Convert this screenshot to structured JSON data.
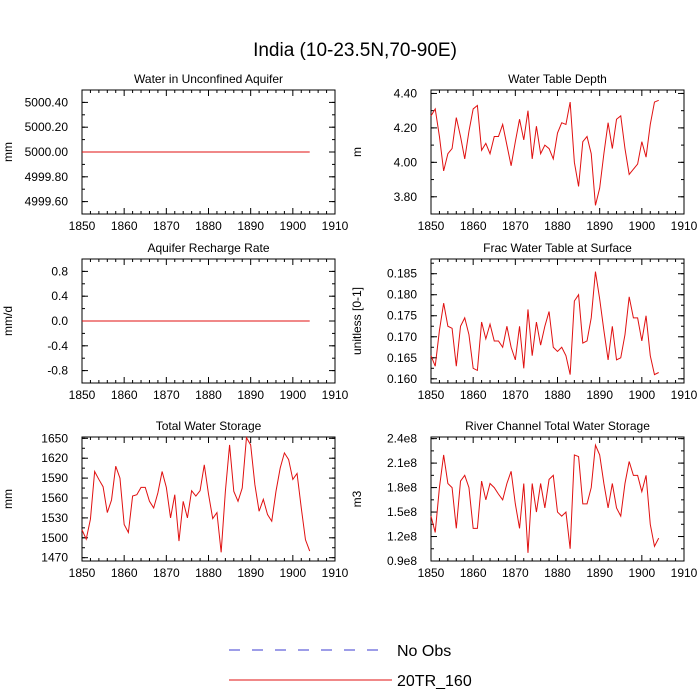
{
  "figure": {
    "title": "India (10-23.5N,70-90E)",
    "legend": [
      {
        "label": "No Obs",
        "color": "#3b3bd0",
        "style": "dashed"
      },
      {
        "label": "20TR_160",
        "color": "#e01010",
        "style": "solid"
      }
    ]
  },
  "chart_data": [
    {
      "type": "line",
      "title": "Water in Unconfined Aquifer",
      "ylabel": "mm",
      "xlim": [
        1850,
        1910
      ],
      "ylim": [
        4999.5,
        5000.5
      ],
      "xticks": [
        1850,
        1860,
        1870,
        1880,
        1890,
        1900,
        1910
      ],
      "yticks": [
        4999.6,
        4999.8,
        5000.0,
        5000.2,
        5000.4
      ],
      "yticklabels": [
        "4999.60",
        "4999.80",
        "5000.00",
        "5000.20",
        "5000.40"
      ],
      "x": [
        1850,
        1851,
        1852,
        1853,
        1854,
        1855,
        1856,
        1857,
        1858,
        1859,
        1860,
        1861,
        1862,
        1863,
        1864,
        1865,
        1866,
        1867,
        1868,
        1869,
        1870,
        1871,
        1872,
        1873,
        1874,
        1875,
        1876,
        1877,
        1878,
        1879,
        1880,
        1881,
        1882,
        1883,
        1884,
        1885,
        1886,
        1887,
        1888,
        1889,
        1890,
        1891,
        1892,
        1893,
        1894,
        1895,
        1896,
        1897,
        1898,
        1899,
        1900,
        1901,
        1902,
        1903,
        1904
      ],
      "series": [
        {
          "name": "20TR_160",
          "color": "#e01010",
          "values": [
            5000,
            5000,
            5000,
            5000,
            5000,
            5000,
            5000,
            5000,
            5000,
            5000,
            5000,
            5000,
            5000,
            5000,
            5000,
            5000,
            5000,
            5000,
            5000,
            5000,
            5000,
            5000,
            5000,
            5000,
            5000,
            5000,
            5000,
            5000,
            5000,
            5000,
            5000,
            5000,
            5000,
            5000,
            5000,
            5000,
            5000,
            5000,
            5000,
            5000,
            5000,
            5000,
            5000,
            5000,
            5000,
            5000,
            5000,
            5000,
            5000,
            5000,
            5000,
            5000,
            5000,
            5000,
            5000
          ]
        }
      ]
    },
    {
      "type": "line",
      "title": "Water Table Depth",
      "ylabel": "m",
      "xlim": [
        1850,
        1910
      ],
      "ylim": [
        3.7,
        4.42
      ],
      "xticks": [
        1850,
        1860,
        1870,
        1880,
        1890,
        1900,
        1910
      ],
      "yticks": [
        3.8,
        4.0,
        4.2,
        4.4
      ],
      "yticklabels": [
        "3.80",
        "4.00",
        "4.20",
        "4.40"
      ],
      "x": [
        1850,
        1851,
        1852,
        1853,
        1854,
        1855,
        1856,
        1857,
        1858,
        1859,
        1860,
        1861,
        1862,
        1863,
        1864,
        1865,
        1866,
        1867,
        1868,
        1869,
        1870,
        1871,
        1872,
        1873,
        1874,
        1875,
        1876,
        1877,
        1878,
        1879,
        1880,
        1881,
        1882,
        1883,
        1884,
        1885,
        1886,
        1887,
        1888,
        1889,
        1890,
        1891,
        1892,
        1893,
        1894,
        1895,
        1896,
        1897,
        1898,
        1899,
        1900,
        1901,
        1902,
        1903,
        1904
      ],
      "series": [
        {
          "name": "20TR_160",
          "color": "#e01010",
          "values": [
            4.27,
            4.31,
            4.15,
            3.95,
            4.05,
            4.08,
            4.26,
            4.15,
            4.02,
            4.18,
            4.31,
            4.33,
            4.07,
            4.11,
            4.05,
            4.15,
            4.15,
            4.22,
            4.1,
            3.98,
            4.12,
            4.25,
            4.13,
            4.3,
            4.02,
            4.21,
            4.05,
            4.1,
            4.08,
            4.02,
            4.17,
            4.23,
            4.22,
            4.35,
            4.0,
            3.86,
            4.12,
            4.15,
            4.05,
            3.75,
            3.85,
            4.05,
            4.23,
            4.08,
            4.25,
            4.27,
            4.08,
            3.93,
            3.96,
            3.99,
            4.12,
            4.03,
            4.22,
            4.35,
            4.36
          ]
        }
      ]
    },
    {
      "type": "line",
      "title": "Aquifer Recharge Rate",
      "ylabel": "mm/d",
      "xlim": [
        1850,
        1910
      ],
      "ylim": [
        -1.0,
        1.0
      ],
      "xticks": [
        1850,
        1860,
        1870,
        1880,
        1890,
        1900,
        1910
      ],
      "yticks": [
        -0.8,
        -0.4,
        0.0,
        0.4,
        0.8
      ],
      "yticklabels": [
        "-0.8",
        "-0.4",
        "0.0",
        "0.4",
        "0.8"
      ],
      "x": [
        1850,
        1851,
        1852,
        1853,
        1854,
        1855,
        1856,
        1857,
        1858,
        1859,
        1860,
        1861,
        1862,
        1863,
        1864,
        1865,
        1866,
        1867,
        1868,
        1869,
        1870,
        1871,
        1872,
        1873,
        1874,
        1875,
        1876,
        1877,
        1878,
        1879,
        1880,
        1881,
        1882,
        1883,
        1884,
        1885,
        1886,
        1887,
        1888,
        1889,
        1890,
        1891,
        1892,
        1893,
        1894,
        1895,
        1896,
        1897,
        1898,
        1899,
        1900,
        1901,
        1902,
        1903,
        1904
      ],
      "series": [
        {
          "name": "20TR_160",
          "color": "#e01010",
          "values": [
            0,
            0,
            0,
            0,
            0,
            0,
            0,
            0,
            0,
            0,
            0,
            0,
            0,
            0,
            0,
            0,
            0,
            0,
            0,
            0,
            0,
            0,
            0,
            0,
            0,
            0,
            0,
            0,
            0,
            0,
            0,
            0,
            0,
            0,
            0,
            0,
            0,
            0,
            0,
            0,
            0,
            0,
            0,
            0,
            0,
            0,
            0,
            0,
            0,
            0,
            0,
            0,
            0,
            0,
            0
          ]
        }
      ]
    },
    {
      "type": "line",
      "title": "Frac Water Table at Surface",
      "ylabel": "unitless [0-1]",
      "xlim": [
        1850,
        1910
      ],
      "ylim": [
        0.159,
        0.1885
      ],
      "xticks": [
        1850,
        1860,
        1870,
        1880,
        1890,
        1900,
        1910
      ],
      "yticks": [
        0.16,
        0.165,
        0.17,
        0.175,
        0.18,
        0.185
      ],
      "yticklabels": [
        "0.160",
        "0.165",
        "0.170",
        "0.175",
        "0.180",
        "0.185"
      ],
      "x": [
        1850,
        1851,
        1852,
        1853,
        1854,
        1855,
        1856,
        1857,
        1858,
        1859,
        1860,
        1861,
        1862,
        1863,
        1864,
        1865,
        1866,
        1867,
        1868,
        1869,
        1870,
        1871,
        1872,
        1873,
        1874,
        1875,
        1876,
        1877,
        1878,
        1879,
        1880,
        1881,
        1882,
        1883,
        1884,
        1885,
        1886,
        1887,
        1888,
        1889,
        1890,
        1891,
        1892,
        1893,
        1894,
        1895,
        1896,
        1897,
        1898,
        1899,
        1900,
        1901,
        1902,
        1903,
        1904
      ],
      "series": [
        {
          "name": "20TR_160",
          "color": "#e01010",
          "values": [
            0.1655,
            0.163,
            0.1715,
            0.178,
            0.1725,
            0.172,
            0.163,
            0.1725,
            0.1745,
            0.1705,
            0.1625,
            0.162,
            0.1735,
            0.1695,
            0.173,
            0.169,
            0.169,
            0.1675,
            0.1725,
            0.1675,
            0.1645,
            0.1725,
            0.1625,
            0.1765,
            0.1655,
            0.1735,
            0.168,
            0.1725,
            0.176,
            0.1675,
            0.1665,
            0.1675,
            0.1655,
            0.161,
            0.1785,
            0.18,
            0.1685,
            0.169,
            0.1745,
            0.1855,
            0.179,
            0.1715,
            0.1645,
            0.1725,
            0.1645,
            0.165,
            0.1705,
            0.1795,
            0.1745,
            0.1745,
            0.169,
            0.175,
            0.1655,
            0.161,
            0.1615
          ]
        }
      ]
    },
    {
      "type": "line",
      "title": "Total Water Storage",
      "ylabel": "mm",
      "xlim": [
        1850,
        1910
      ],
      "ylim": [
        1465,
        1652
      ],
      "xticks": [
        1850,
        1860,
        1870,
        1880,
        1890,
        1900,
        1910
      ],
      "yticks": [
        1470,
        1500,
        1530,
        1560,
        1590,
        1620,
        1650
      ],
      "yticklabels": [
        "1470",
        "1500",
        "1530",
        "1560",
        "1590",
        "1620",
        "1650"
      ],
      "x": [
        1850,
        1851,
        1852,
        1853,
        1854,
        1855,
        1856,
        1857,
        1858,
        1859,
        1860,
        1861,
        1862,
        1863,
        1864,
        1865,
        1866,
        1867,
        1868,
        1869,
        1870,
        1871,
        1872,
        1873,
        1874,
        1875,
        1876,
        1877,
        1878,
        1879,
        1880,
        1881,
        1882,
        1883,
        1884,
        1885,
        1886,
        1887,
        1888,
        1889,
        1890,
        1891,
        1892,
        1893,
        1894,
        1895,
        1896,
        1897,
        1898,
        1899,
        1900,
        1901,
        1902,
        1903,
        1904
      ],
      "series": [
        {
          "name": "20TR_160",
          "color": "#e01010",
          "values": [
            1512,
            1498,
            1528,
            1600,
            1588,
            1577,
            1538,
            1557,
            1608,
            1590,
            1520,
            1508,
            1563,
            1565,
            1576,
            1576,
            1555,
            1545,
            1568,
            1600,
            1576,
            1530,
            1565,
            1495,
            1555,
            1530,
            1571,
            1563,
            1571,
            1610,
            1566,
            1529,
            1538,
            1478,
            1570,
            1640,
            1570,
            1555,
            1575,
            1651,
            1640,
            1580,
            1540,
            1558,
            1535,
            1525,
            1570,
            1605,
            1628,
            1618,
            1588,
            1597,
            1545,
            1497,
            1480
          ]
        }
      ]
    },
    {
      "type": "line",
      "title": "River Channel Total Water Storage",
      "ylabel": "m3",
      "xlim": [
        1850,
        1910
      ],
      "ylim": [
        0.9,
        2.42
      ],
      "xticks": [
        1850,
        1860,
        1870,
        1880,
        1890,
        1900,
        1910
      ],
      "yticks": [
        0.9,
        1.2,
        1.5,
        1.8,
        2.1,
        2.4
      ],
      "yticklabels": [
        "0.9e8",
        "1.2e8",
        "1.5e8",
        "1.8e8",
        "2.1e8",
        "2.4e8"
      ],
      "x": [
        1850,
        1851,
        1852,
        1853,
        1854,
        1855,
        1856,
        1857,
        1858,
        1859,
        1860,
        1861,
        1862,
        1863,
        1864,
        1865,
        1866,
        1867,
        1868,
        1869,
        1870,
        1871,
        1872,
        1873,
        1874,
        1875,
        1876,
        1877,
        1878,
        1879,
        1880,
        1881,
        1882,
        1883,
        1884,
        1885,
        1886,
        1887,
        1888,
        1889,
        1890,
        1891,
        1892,
        1893,
        1894,
        1895,
        1896,
        1897,
        1898,
        1899,
        1900,
        1901,
        1902,
        1903,
        1904
      ],
      "series": [
        {
          "name": "20TR_160",
          "color": "#e01010",
          "values": [
            1.45,
            1.25,
            1.8,
            2.2,
            1.85,
            1.8,
            1.3,
            1.88,
            1.95,
            1.8,
            1.3,
            1.3,
            1.88,
            1.65,
            1.85,
            1.8,
            1.72,
            1.65,
            1.85,
            2.0,
            1.6,
            1.3,
            1.85,
            1.0,
            1.85,
            1.5,
            1.85,
            1.55,
            1.9,
            1.95,
            1.5,
            1.45,
            1.5,
            1.05,
            2.2,
            2.18,
            1.6,
            1.6,
            1.8,
            2.32,
            2.2,
            1.85,
            1.55,
            1.85,
            1.55,
            1.45,
            1.85,
            2.12,
            1.95,
            1.95,
            1.75,
            1.95,
            1.35,
            1.08,
            1.18
          ]
        }
      ]
    }
  ]
}
